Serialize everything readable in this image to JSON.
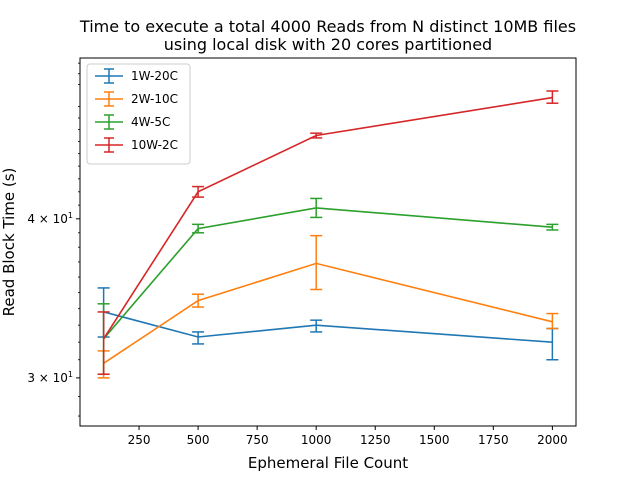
{
  "chart_data": {
    "type": "line",
    "title": [
      "Time to execute a total 4000 Reads from N distinct 10MB files",
      "using local disk with 20 cores partitioned"
    ],
    "xlabel": "Ephemeral File Count",
    "ylabel": "Read Block Time (s)",
    "x_scale": "linear",
    "y_scale": "log",
    "xlim": [
      0,
      2100
    ],
    "ylim": [
      27.5,
      53.5
    ],
    "x_ticks": [
      250,
      500,
      750,
      1000,
      1250,
      1500,
      1750,
      2000
    ],
    "y_ticks": [
      {
        "value": 30,
        "label": "3 × 10^1"
      },
      {
        "value": 40,
        "label": "4 × 10^1"
      }
    ],
    "legend_position": "top-left",
    "x": [
      100,
      500,
      1000,
      2000
    ],
    "series": [
      {
        "name": "1W-20C",
        "color": "#1f77b4",
        "values": [
          33.8,
          32.3,
          33.0,
          32.0
        ],
        "err_low": [
          32.3,
          31.9,
          32.6,
          31.0
        ],
        "err_high": [
          35.3,
          32.6,
          33.3,
          32.8
        ]
      },
      {
        "name": "2W-10C",
        "color": "#ff7f0e",
        "values": [
          30.8,
          34.5,
          36.9,
          33.2
        ],
        "err_low": [
          30.0,
          34.1,
          35.2,
          32.8
        ],
        "err_high": [
          31.5,
          34.9,
          38.8,
          33.7
        ]
      },
      {
        "name": "4W-5C",
        "color": "#2ca02c",
        "values": [
          32.2,
          39.3,
          40.8,
          39.4
        ],
        "err_low": [
          30.2,
          39.0,
          40.1,
          39.2
        ],
        "err_high": [
          34.3,
          39.6,
          41.5,
          39.6
        ]
      },
      {
        "name": "10W-2C",
        "color": "#d62728",
        "values": [
          32.2,
          42.0,
          46.5,
          49.8
        ],
        "err_low": [
          30.2,
          41.6,
          46.3,
          49.3
        ],
        "err_high": [
          33.8,
          42.4,
          46.7,
          50.4
        ]
      }
    ]
  }
}
